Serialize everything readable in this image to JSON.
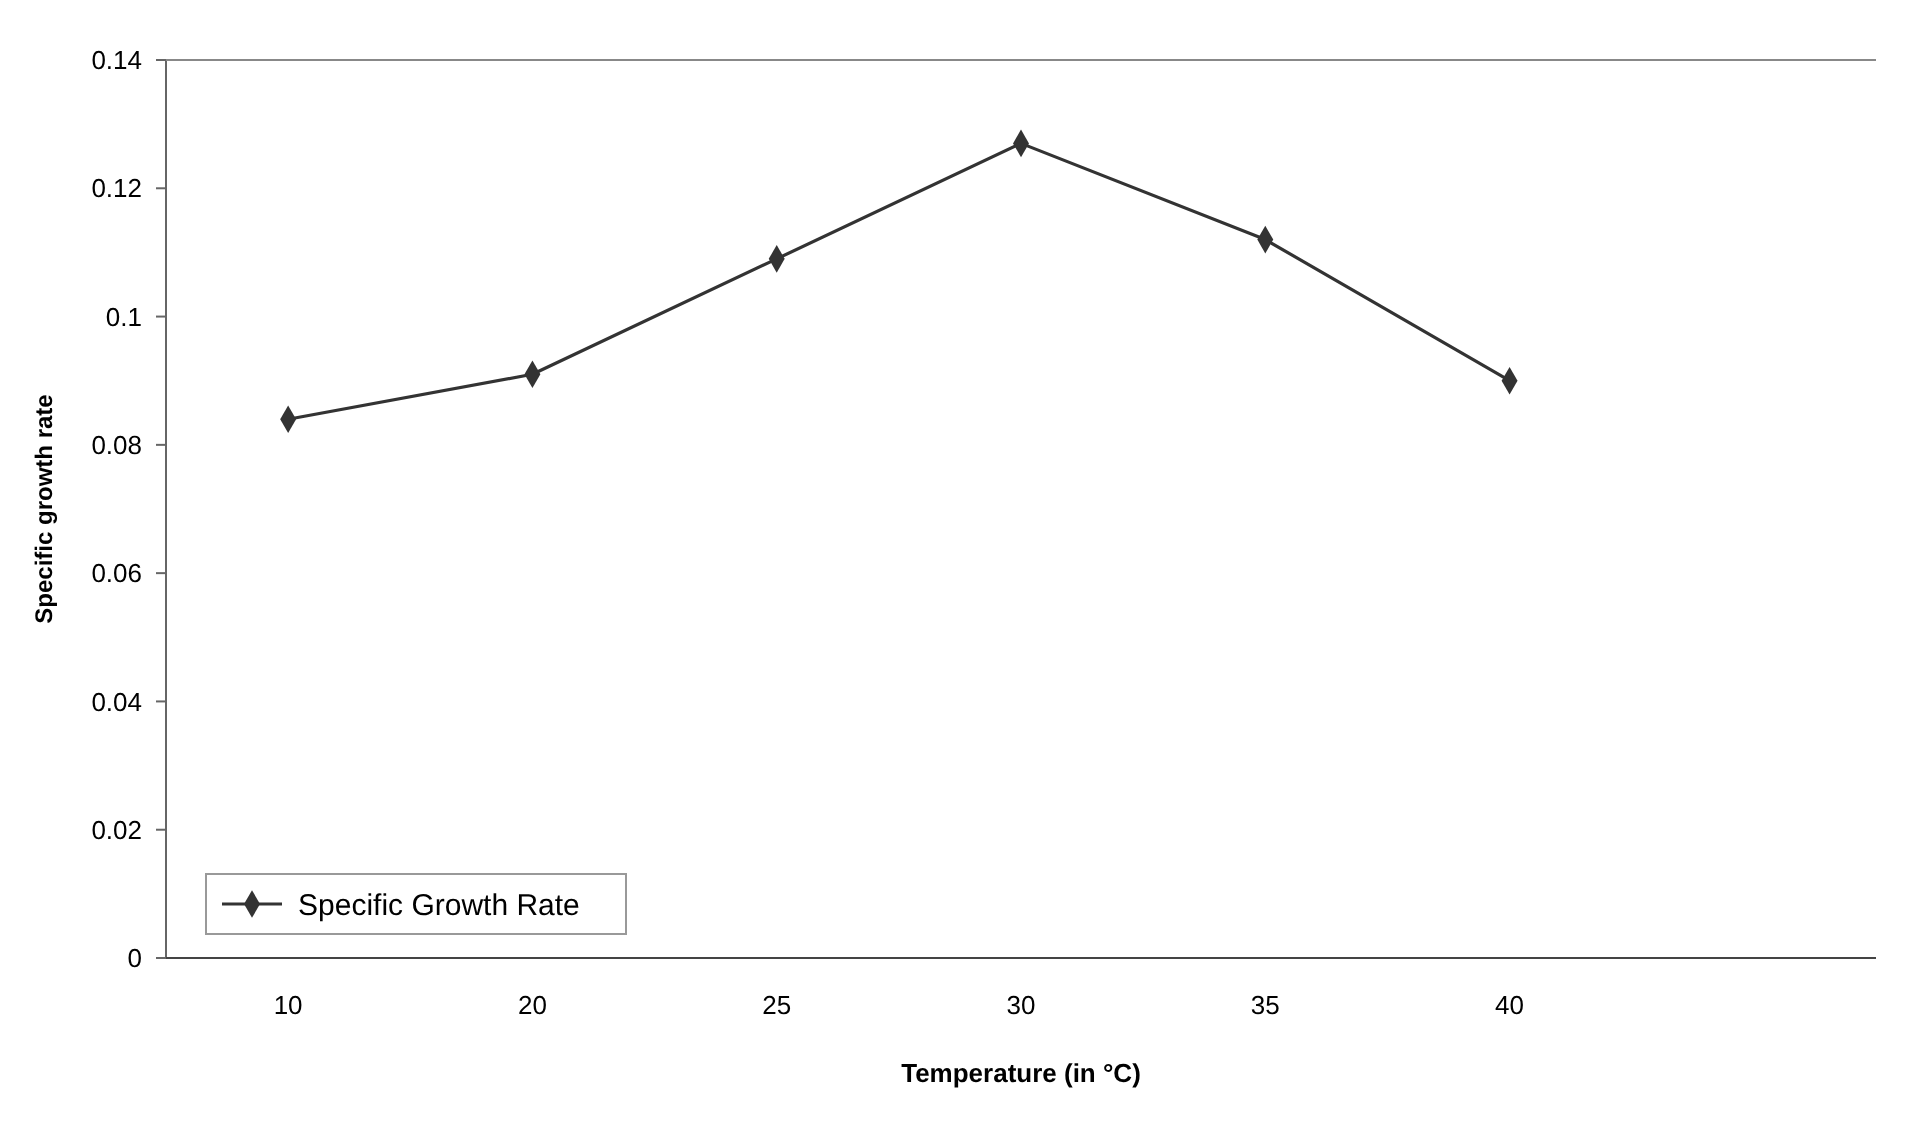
{
  "chart_data": {
    "type": "line",
    "xlabel": "Temperature (in °C)",
    "ylabel": "Specific growth rate",
    "categories": [
      "10",
      "20",
      "25",
      "30",
      "35",
      "40",
      null
    ],
    "series": [
      {
        "name": "Specific Growth Rate",
        "color": "#333333",
        "values": [
          0.084,
          0.091,
          0.109,
          0.127,
          0.112,
          0.09,
          null
        ]
      }
    ],
    "ylim": [
      0,
      0.14
    ],
    "yticks": [
      0,
      0.02,
      0.04,
      0.06,
      0.08,
      0.1,
      0.12,
      0.14
    ],
    "grid": false,
    "legend": "bottom left",
    "marker": "diamond",
    "line_style": "solid"
  }
}
